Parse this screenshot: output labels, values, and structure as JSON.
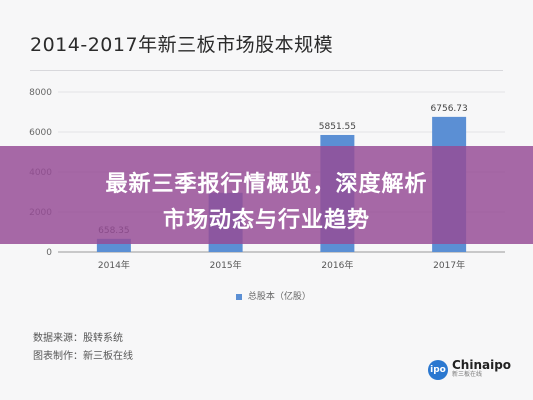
{
  "banner": {
    "line1": "最新三季报行情概览，深度解析",
    "line2": "市场动态与行业趋势"
  },
  "chart_data": {
    "type": "bar",
    "title": "2014-2017年新三板市场股本规模",
    "categories": [
      "2014年",
      "2015年",
      "2016年",
      "2017年"
    ],
    "series": [
      {
        "name": "总股本（亿股）",
        "values": [
          658.35,
          2959.51,
          5851.55,
          6756.73
        ]
      }
    ],
    "data_labels": [
      "658.35",
      "",
      "5851.55",
      "6756.73"
    ],
    "yticks": [
      "0",
      "2000",
      "4000",
      "6000",
      "8000"
    ],
    "ylim": [
      0,
      8000
    ],
    "grid": true,
    "legend_position": "bottom",
    "colors": {
      "bar": "#5b8fd4",
      "grid": "#e3e3e6",
      "axis": "#9a9a9a"
    }
  },
  "footer": {
    "source": "数据来源：股转系统",
    "maker": "图表制作：新三板在线"
  },
  "logo": {
    "icon": "ipo-logo-icon",
    "mark": "ipo",
    "name": "Chinaipo",
    "tagline": "新三板在线"
  }
}
